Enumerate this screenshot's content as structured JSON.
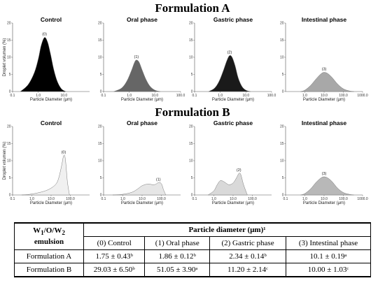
{
  "titles": {
    "a": "Formulation A",
    "b": "Formulation B"
  },
  "axis": {
    "xlabel": "Particle Diameter (μm)",
    "ylabel": "Droplet volumen (%)",
    "yticks": [
      "0",
      "5",
      "10",
      "15",
      "20"
    ],
    "xticks": [
      "0.1",
      "1.0",
      "10.0",
      "100.0",
      "1000.0"
    ]
  },
  "colors": {
    "control_a": "#000000",
    "oral_a": "#666666",
    "gastric_a": "#1a1a1a",
    "intestinal_a": "#a8a8a8",
    "control_b": "#f0f0f0",
    "oral_b": "#e6e6e6",
    "gastric_b": "#d9d9d9",
    "intestinal_b": "#b8b8b8"
  },
  "chart_data": [
    {
      "type": "area",
      "formulation": "A",
      "title": "Control",
      "peak_label": "(0)",
      "ylabel": "Droplet volumen (%)",
      "xlabel": "Particle Diameter (μm)",
      "ylim": [
        0,
        20
      ],
      "xscale": "log",
      "xlim": [
        0.1,
        100
      ],
      "xticks": [
        "0.1",
        "1.0",
        "10.0"
      ],
      "x": [
        0.2,
        0.4,
        0.7,
        1.0,
        1.3,
        1.75,
        2.3,
        3.0,
        4.0,
        5.5,
        8.0,
        12.0
      ],
      "y": [
        0,
        2.0,
        5.5,
        9.5,
        13.5,
        15.8,
        14.5,
        11.0,
        6.5,
        3.0,
        0.8,
        0
      ]
    },
    {
      "type": "area",
      "formulation": "A",
      "title": "Oral phase",
      "peak_label": "(1)",
      "ylim": [
        0,
        20
      ],
      "xscale": "log",
      "xlim": [
        0.1,
        100
      ],
      "xticks": [
        "0.1",
        "1.0",
        "10.0",
        "100.0"
      ],
      "x": [
        0.25,
        0.5,
        0.8,
        1.2,
        1.6,
        1.9,
        2.4,
        3.2,
        4.5,
        6.5,
        10.0,
        16.0
      ],
      "y": [
        0,
        1.0,
        3.0,
        6.0,
        8.5,
        9.2,
        8.6,
        6.2,
        3.5,
        1.5,
        0.4,
        0
      ]
    },
    {
      "type": "area",
      "formulation": "A",
      "title": "Gastric phase",
      "peak_label": "(2)",
      "ylim": [
        0,
        20
      ],
      "xscale": "log",
      "xlim": [
        0.1,
        100
      ],
      "xticks": [
        "0.1",
        "1.0",
        "10.0",
        "100.0"
      ],
      "x": [
        0.35,
        0.6,
        0.9,
        1.3,
        1.8,
        2.3,
        2.9,
        3.8,
        5.0,
        7.0,
        10.0,
        15.0
      ],
      "y": [
        0,
        1.0,
        3.0,
        6.0,
        9.0,
        10.5,
        10.0,
        7.5,
        4.0,
        1.5,
        0.4,
        0
      ]
    },
    {
      "type": "area",
      "formulation": "A",
      "title": "Intestinal phase",
      "peak_label": "(3)",
      "ylim": [
        0,
        20
      ],
      "xscale": "log",
      "xlim": [
        0.1,
        1000
      ],
      "xticks": [
        "1.0",
        "10.0",
        "100.0",
        "1000.0"
      ],
      "x": [
        0.6,
        1.0,
        2.0,
        4.0,
        7.0,
        10.0,
        15.0,
        25.0,
        50.0,
        100.0,
        200.0,
        350.0
      ],
      "y": [
        0,
        0.4,
        1.8,
        3.8,
        5.2,
        5.6,
        5.3,
        4.2,
        2.2,
        0.8,
        0.2,
        0
      ]
    },
    {
      "type": "area",
      "formulation": "B",
      "title": "Control",
      "peak_label": "(0)",
      "ylim": [
        0,
        20
      ],
      "xscale": "log",
      "xlim": [
        0.1,
        1000
      ],
      "xticks": [
        "0.1",
        "1.0",
        "10.0",
        "100.0"
      ],
      "x": [
        0.3,
        0.8,
        2.0,
        5.0,
        10.0,
        18.0,
        25.0,
        35.0,
        45.0,
        55.0,
        70.0,
        90.0
      ],
      "y": [
        0,
        0.2,
        0.6,
        1.2,
        2.0,
        3.2,
        5.0,
        8.5,
        11.5,
        10.5,
        4.0,
        0
      ]
    },
    {
      "type": "area",
      "formulation": "B",
      "title": "Oral phase",
      "peak_label": "(1)",
      "ylim": [
        0,
        20
      ],
      "xscale": "log",
      "xlim": [
        0.1,
        1000
      ],
      "xticks": [
        "0.1",
        "1.0",
        "10.0",
        "100.0"
      ],
      "x": [
        0.3,
        1.0,
        3.0,
        6.0,
        10.0,
        20.0,
        35.0,
        50.0,
        70.0,
        100.0,
        130.0,
        170.0
      ],
      "y": [
        0,
        0.2,
        0.8,
        1.8,
        2.7,
        3.2,
        3.0,
        3.1,
        3.6,
        3.3,
        1.5,
        0
      ]
    },
    {
      "type": "area",
      "formulation": "B",
      "title": "Gastric phase",
      "peak_label": "(2)",
      "ylim": [
        0,
        20
      ],
      "xscale": "log",
      "xlim": [
        0.1,
        1000
      ],
      "xticks": [
        "0.1",
        "1.0",
        "10.0",
        "100.0"
      ],
      "x": [
        0.5,
        1.0,
        1.5,
        2.2,
        3.5,
        6.0,
        10.0,
        15.0,
        20.0,
        25.0,
        35.0,
        55.0
      ],
      "y": [
        0,
        1.2,
        3.0,
        4.2,
        3.8,
        3.0,
        3.5,
        5.0,
        6.3,
        6.0,
        3.0,
        0
      ]
    },
    {
      "type": "area",
      "formulation": "B",
      "title": "Intestinal phase",
      "peak_label": "(3)",
      "ylim": [
        0,
        20
      ],
      "xscale": "log",
      "xlim": [
        0.1,
        1000
      ],
      "xticks": [
        "0.1",
        "1.0",
        "10.0",
        "100.0",
        "1000.0"
      ],
      "x": [
        0.6,
        1.0,
        2.0,
        4.0,
        7.0,
        10.0,
        15.0,
        25.0,
        50.0,
        100.0,
        200.0,
        350.0
      ],
      "y": [
        0,
        0.4,
        1.8,
        3.8,
        5.0,
        5.3,
        5.0,
        4.0,
        2.0,
        0.7,
        0.2,
        0
      ]
    }
  ],
  "table": {
    "corner": "W₁/O/W₂ emulsion",
    "group_header": "Particle diameter (μm)¹",
    "columns": [
      "(0) Control",
      "(1) Oral phase",
      "(2) Gastric phase",
      "(3) Intestinal phase"
    ],
    "rows": [
      {
        "label": "Formulation A",
        "values": [
          "1.75 ± 0.43ᵇ",
          "1.86 ± 0.12ᵇ",
          "2.34 ± 0.14ᵇ",
          "10.1 ± 0.19ᵃ"
        ]
      },
      {
        "label": "Formulation B",
        "values": [
          "29.03 ± 6.50ᵇ",
          "51.05 ± 3.90ᵃ",
          "11.20 ± 2.14ᶜ",
          "10.00 ± 1.03ᶜ"
        ]
      }
    ]
  }
}
